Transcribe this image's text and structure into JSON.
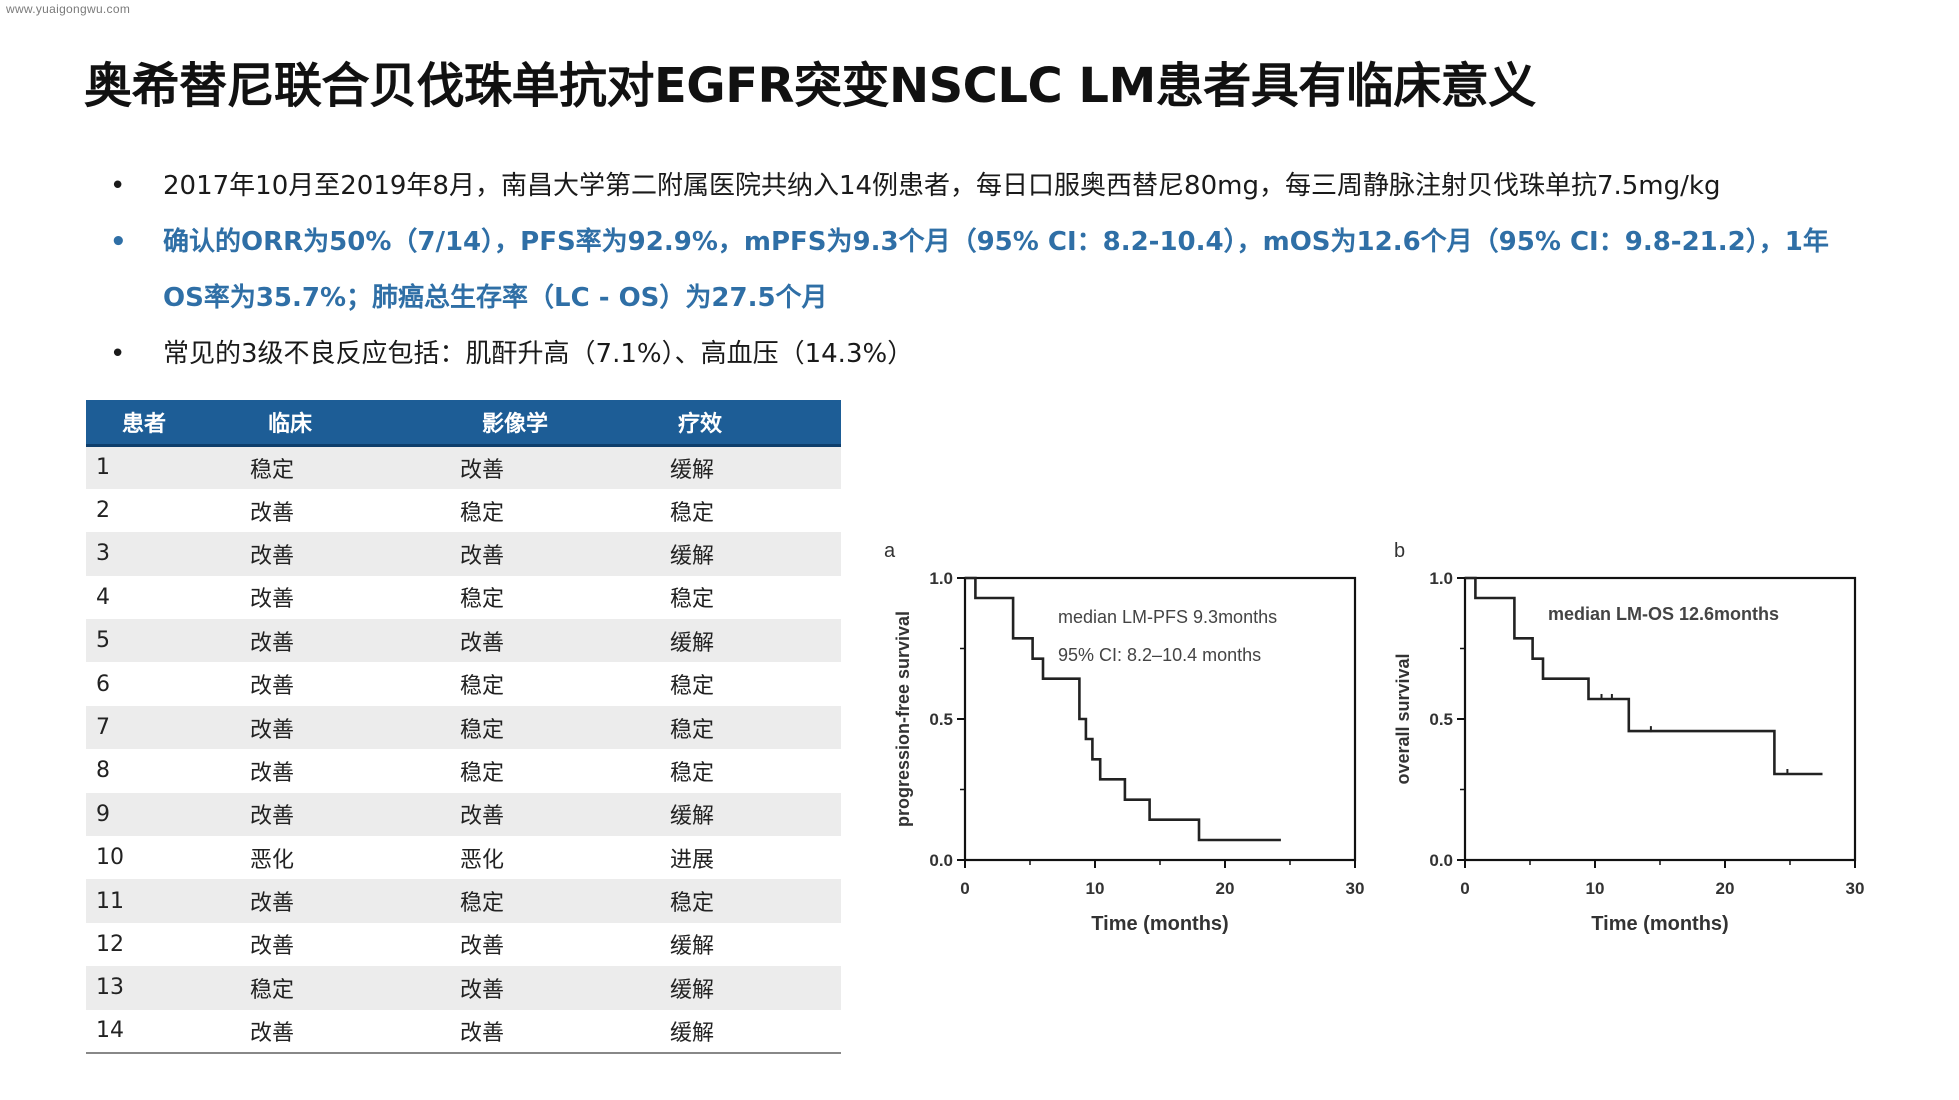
{
  "watermark": "www.yuaigongwu.com",
  "title": "奥希替尼联合贝伐珠单抗对EGFR突变NSCLC LM患者具有临床意义",
  "bullets": [
    "2017年10月至2019年8月，南昌大学第二附属医院共纳入14例患者，每日口服奥西替尼80mg，每三周静脉注射贝伐珠单抗7.5mg/kg",
    "确认的ORR为50%（7/14），PFS率为92.9%，mPFS为9.3个月（95% CI：8.2-10.4），mOS为12.6个月（95% CI：9.8-21.2），1年OS率为35.7%；肺癌总生存率（LC - OS）为27.5个月",
    "常见的3级不良反应包括：肌酐升高（7.1%）、高血压（14.3%）"
  ],
  "bullet_glyph": "•",
  "table": {
    "headers": [
      "患者",
      "临床",
      "影像学",
      "疗效"
    ],
    "rows": [
      [
        "1",
        "稳定",
        "改善",
        "缓解"
      ],
      [
        "2",
        "改善",
        "稳定",
        "稳定"
      ],
      [
        "3",
        "改善",
        "改善",
        "缓解"
      ],
      [
        "4",
        "改善",
        "稳定",
        "稳定"
      ],
      [
        "5",
        "改善",
        "改善",
        "缓解"
      ],
      [
        "6",
        "改善",
        "稳定",
        "稳定"
      ],
      [
        "7",
        "改善",
        "稳定",
        "稳定"
      ],
      [
        "8",
        "改善",
        "稳定",
        "稳定"
      ],
      [
        "9",
        "改善",
        "改善",
        "缓解"
      ],
      [
        "10",
        "恶化",
        "恶化",
        "进展"
      ],
      [
        "11",
        "改善",
        "稳定",
        "稳定"
      ],
      [
        "12",
        "改善",
        "改善",
        "缓解"
      ],
      [
        "13",
        "稳定",
        "改善",
        "缓解"
      ],
      [
        "14",
        "改善",
        "改善",
        "缓解"
      ]
    ]
  },
  "chart_data": [
    {
      "type": "line",
      "panel": "a",
      "xlabel": "Time (months)",
      "ylabel": "progression-free survival",
      "xlim": [
        0,
        30
      ],
      "ylim": [
        0,
        1.0
      ],
      "xticks": [
        0,
        10,
        20,
        30
      ],
      "yticks": [
        "0.0",
        "0.5",
        "1.0"
      ],
      "annotations": [
        "median LM-PFS 9.3months",
        "95% CI: 8.2–10.4 months"
      ],
      "series": [
        {
          "x": [
            0,
            0.8,
            0.8,
            3.7,
            3.7,
            5.2,
            5.2,
            6.0,
            6.0,
            8.8,
            8.8,
            9.3,
            9.3,
            9.8,
            9.8,
            10.4,
            10.4,
            12.3,
            12.3,
            14.2,
            14.2,
            18.0,
            18.0,
            20.8,
            20.8,
            24.3
          ],
          "y": [
            1.0,
            1.0,
            0.929,
            0.929,
            0.786,
            0.786,
            0.714,
            0.714,
            0.643,
            0.643,
            0.5,
            0.5,
            0.429,
            0.429,
            0.357,
            0.357,
            0.286,
            0.286,
            0.214,
            0.214,
            0.143,
            0.143,
            0.071,
            0.071,
            0.071,
            0.071
          ]
        }
      ]
    },
    {
      "type": "line",
      "panel": "b",
      "xlabel": "Time (months)",
      "ylabel": "overall survival",
      "xlim": [
        0,
        30
      ],
      "ylim": [
        0,
        1.0
      ],
      "xticks": [
        0,
        10,
        20,
        30
      ],
      "yticks": [
        "0.0",
        "0.5",
        "1.0"
      ],
      "annotations": [
        "median LM-OS 12.6months"
      ],
      "series": [
        {
          "x": [
            0,
            0.8,
            0.8,
            3.8,
            3.8,
            5.2,
            5.2,
            6.0,
            6.0,
            9.5,
            9.5,
            12.6,
            12.6,
            23.8,
            23.8,
            27.5
          ],
          "y": [
            1.0,
            1.0,
            0.929,
            0.929,
            0.786,
            0.786,
            0.714,
            0.714,
            0.643,
            0.643,
            0.571,
            0.571,
            0.457,
            0.457,
            0.305,
            0.305
          ]
        }
      ],
      "censor_marks": [
        {
          "x": 10.5,
          "y": 0.571
        },
        {
          "x": 11.3,
          "y": 0.571
        },
        {
          "x": 14.3,
          "y": 0.457
        },
        {
          "x": 24.8,
          "y": 0.305
        }
      ]
    }
  ]
}
